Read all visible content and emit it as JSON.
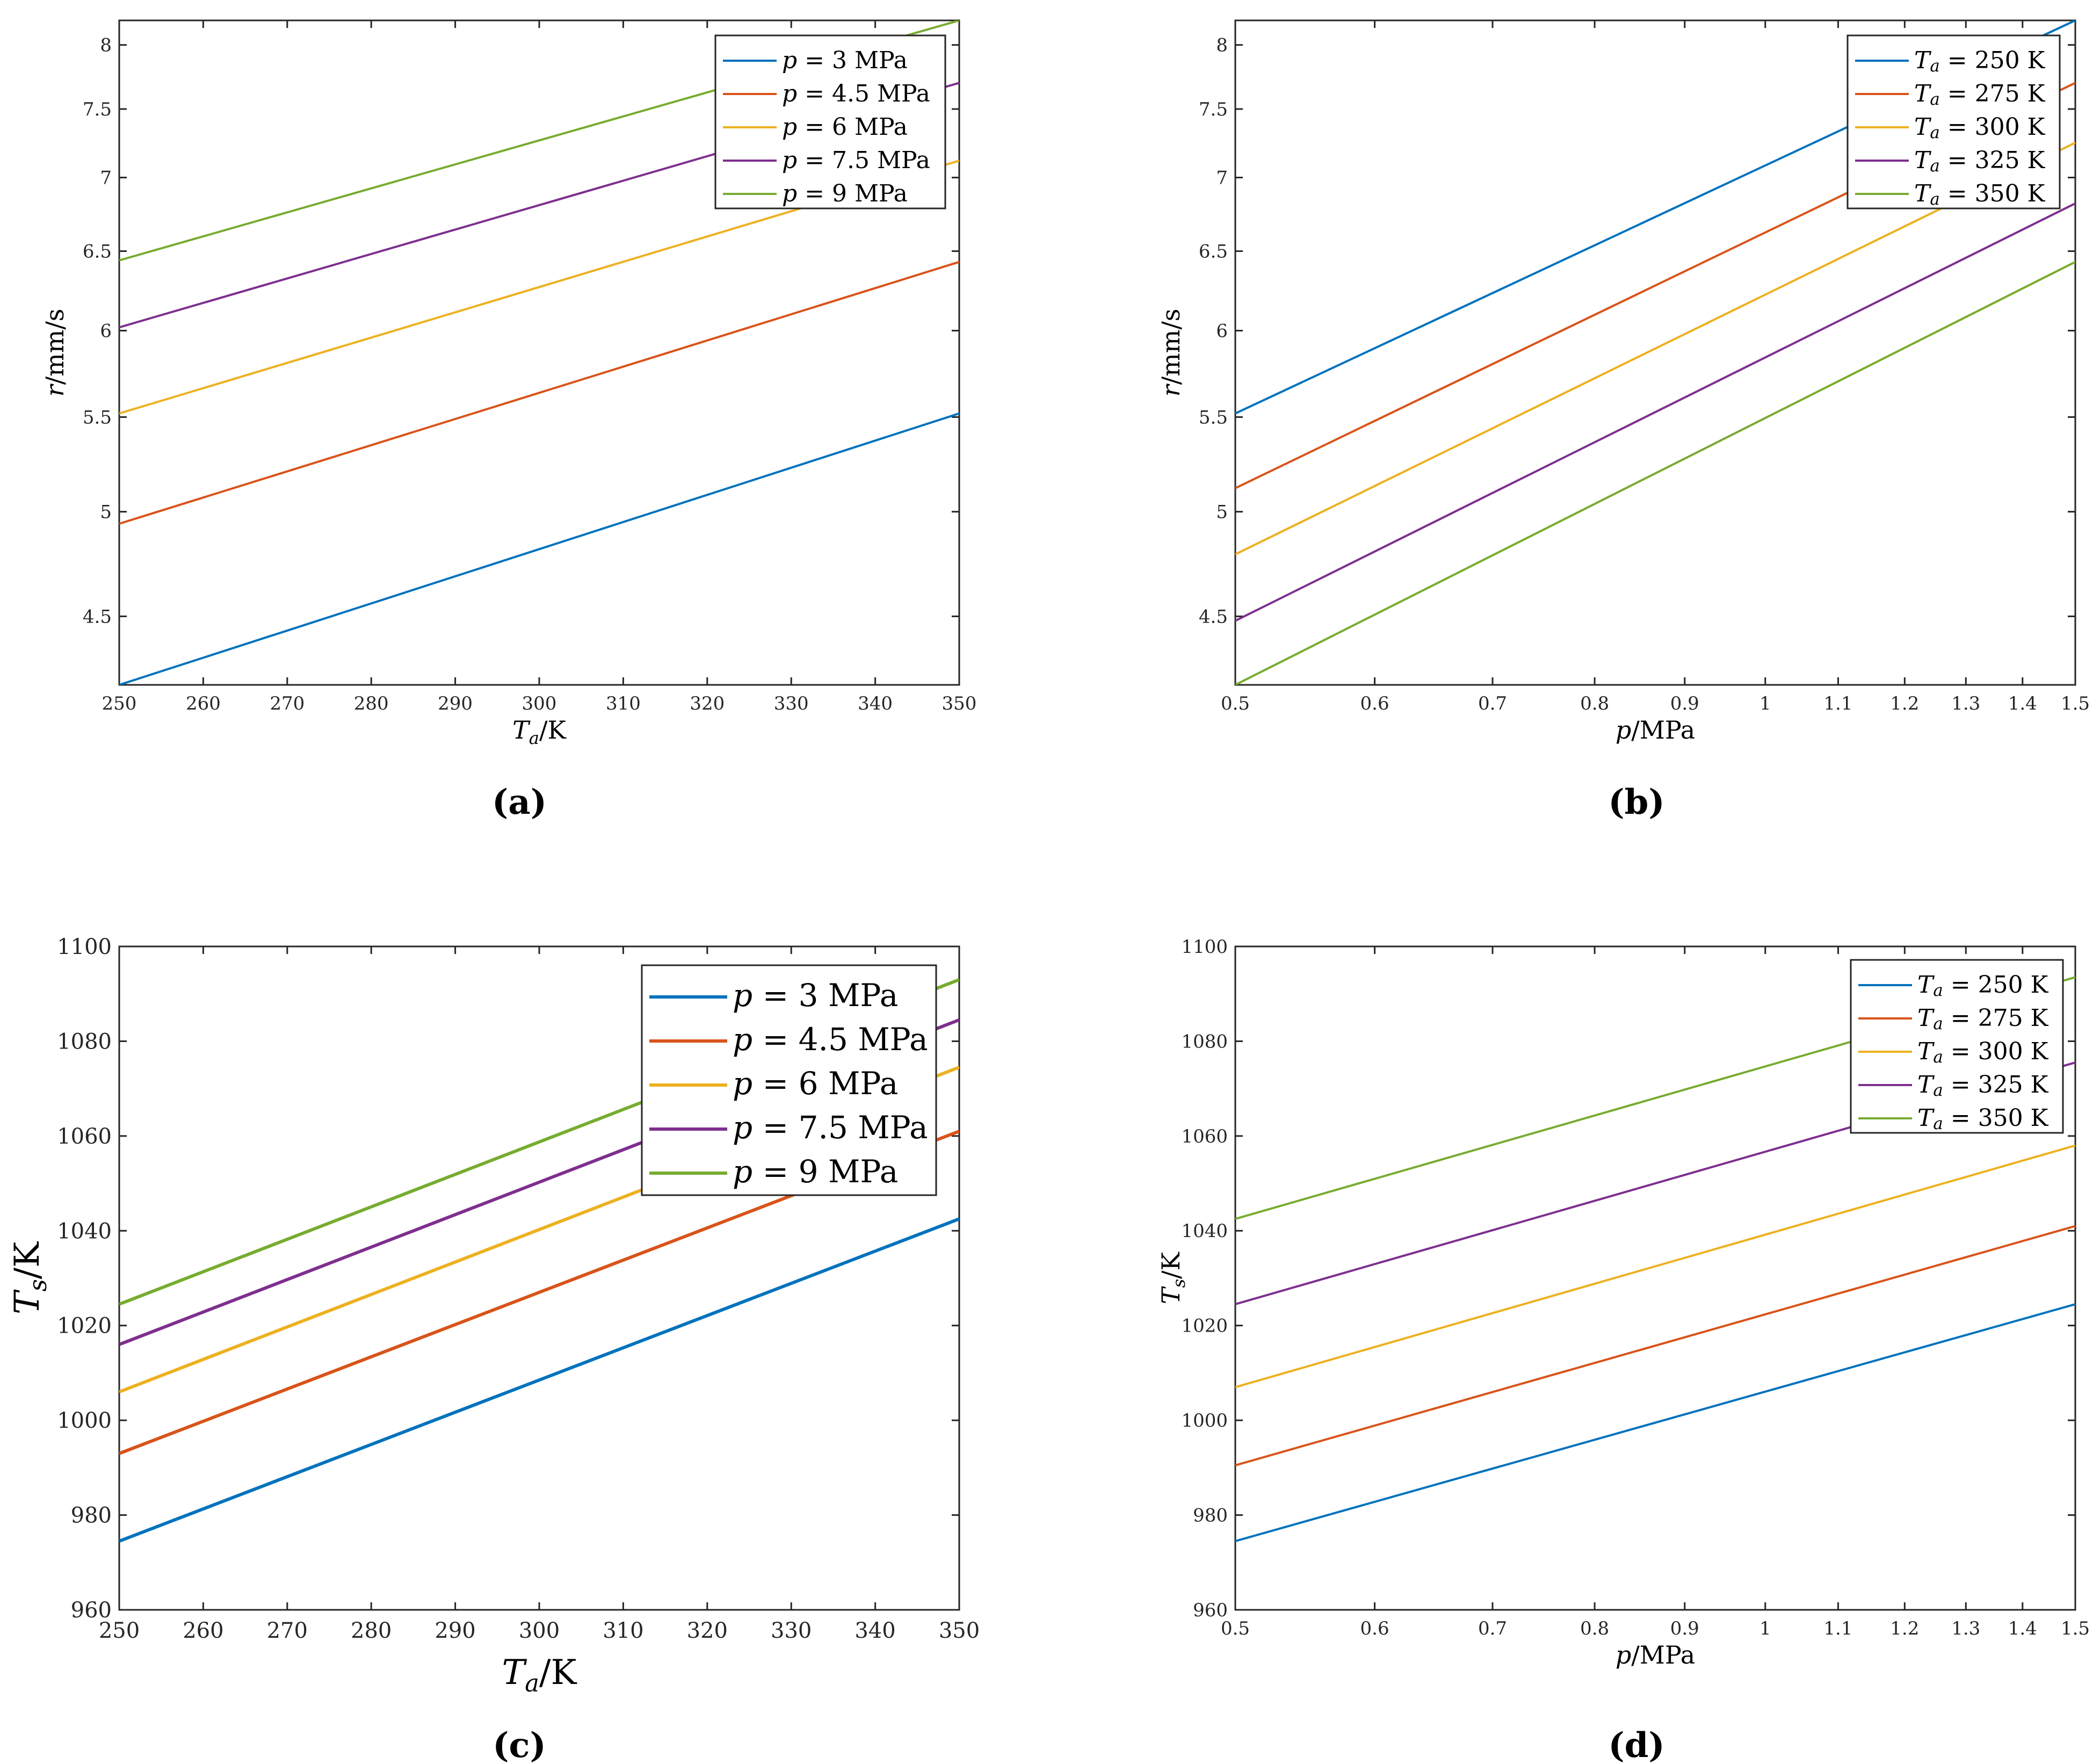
{
  "chart_data": [
    {
      "panel": "a",
      "type": "line",
      "xlabel": "T_a/K",
      "ylabel": "r/mm/s",
      "xscale": "linear",
      "yscale": "log",
      "xlim": [
        250,
        350
      ],
      "ylim": [
        4.2,
        8.2
      ],
      "xticks": [
        250,
        260,
        270,
        280,
        290,
        300,
        310,
        320,
        330,
        340,
        350
      ],
      "yticks": [
        4.5,
        5,
        5.5,
        6,
        6.5,
        7,
        7.5,
        8
      ],
      "legend_position": "top-right",
      "series": [
        {
          "name": "p = 3 MPa",
          "color": "#0072BD",
          "x": [
            250,
            350
          ],
          "y": [
            4.2,
            5.52
          ]
        },
        {
          "name": "p = 4.5 MPa",
          "color": "#D95319",
          "x": [
            250,
            350
          ],
          "y": [
            4.94,
            6.43
          ]
        },
        {
          "name": "p = 6 MPa",
          "color": "#EDB120",
          "x": [
            250,
            350
          ],
          "y": [
            5.52,
            7.12
          ]
        },
        {
          "name": "p = 7.5 MPa",
          "color": "#7E2F8E",
          "x": [
            250,
            350
          ],
          "y": [
            6.02,
            7.7
          ]
        },
        {
          "name": "p = 9 MPa",
          "color": "#77AC30",
          "x": [
            250,
            350
          ],
          "y": [
            6.44,
            8.2
          ]
        }
      ]
    },
    {
      "panel": "b",
      "type": "line",
      "xlabel": "p/MPa",
      "ylabel": "r/mm/s",
      "xscale": "log",
      "yscale": "log",
      "xlim": [
        0.5,
        1.5
      ],
      "ylim": [
        4.2,
        8.2
      ],
      "xticks": [
        0.5,
        0.6,
        0.7,
        0.8,
        0.9,
        1,
        1.1,
        1.2,
        1.3,
        1.4,
        1.5
      ],
      "yticks": [
        4.5,
        5,
        5.5,
        6,
        6.5,
        7,
        7.5,
        8
      ],
      "legend_position": "top-right",
      "series": [
        {
          "name": "T_a = 250 K",
          "color": "#0072BD",
          "x": [
            0.5,
            1.5
          ],
          "y": [
            5.52,
            8.2
          ]
        },
        {
          "name": "T_a = 275 K",
          "color": "#D95319",
          "x": [
            0.5,
            1.5
          ],
          "y": [
            5.12,
            7.7
          ]
        },
        {
          "name": "T_a = 300 K",
          "color": "#EDB120",
          "x": [
            0.5,
            1.5
          ],
          "y": [
            4.79,
            7.25
          ]
        },
        {
          "name": "T_a = 325 K",
          "color": "#7E2F8E",
          "x": [
            0.5,
            1.5
          ],
          "y": [
            4.48,
            6.82
          ]
        },
        {
          "name": "T_a = 350 K",
          "color": "#77AC30",
          "x": [
            0.5,
            1.5
          ],
          "y": [
            4.2,
            6.43
          ]
        }
      ]
    },
    {
      "panel": "c",
      "type": "line",
      "xlabel": "T_a/K",
      "ylabel": "T_s/K",
      "xscale": "linear",
      "yscale": "linear",
      "xlim": [
        250,
        350
      ],
      "ylim": [
        960,
        1100
      ],
      "xticks": [
        250,
        260,
        270,
        280,
        290,
        300,
        310,
        320,
        330,
        340,
        350
      ],
      "yticks": [
        960,
        980,
        1000,
        1020,
        1040,
        1060,
        1080,
        1100
      ],
      "legend_position": "top-right",
      "series": [
        {
          "name": "p = 3 MPa",
          "color": "#0072BD",
          "x": [
            250,
            350
          ],
          "y": [
            974.5,
            1042.5
          ]
        },
        {
          "name": "p = 4.5 MPa",
          "color": "#D95319",
          "x": [
            250,
            350
          ],
          "y": [
            993,
            1061
          ]
        },
        {
          "name": "p = 6 MPa",
          "color": "#EDB120",
          "x": [
            250,
            350
          ],
          "y": [
            1006,
            1074.5
          ]
        },
        {
          "name": "p = 7.5 MPa",
          "color": "#7E2F8E",
          "x": [
            250,
            350
          ],
          "y": [
            1016,
            1084.5
          ]
        },
        {
          "name": "p = 9 MPa",
          "color": "#77AC30",
          "x": [
            250,
            350
          ],
          "y": [
            1024.5,
            1093
          ]
        }
      ]
    },
    {
      "panel": "d",
      "type": "line",
      "xlabel": "p/MPa",
      "ylabel": "T_s/K",
      "xscale": "log",
      "yscale": "linear",
      "xlim": [
        0.5,
        1.5
      ],
      "ylim": [
        960,
        1100
      ],
      "xticks": [
        0.5,
        0.6,
        0.7,
        0.8,
        0.9,
        1,
        1.1,
        1.2,
        1.3,
        1.4,
        1.5
      ],
      "yticks": [
        960,
        980,
        1000,
        1020,
        1040,
        1060,
        1080,
        1100
      ],
      "legend_position": "top-right",
      "series": [
        {
          "name": "T_a = 250 K",
          "color": "#0072BD",
          "x": [
            0.5,
            1.5
          ],
          "y": [
            974.5,
            1024.5
          ]
        },
        {
          "name": "T_a = 275 K",
          "color": "#D95319",
          "x": [
            0.5,
            1.5
          ],
          "y": [
            990.5,
            1041
          ]
        },
        {
          "name": "T_a = 300 K",
          "color": "#EDB120",
          "x": [
            0.5,
            1.5
          ],
          "y": [
            1007,
            1058
          ]
        },
        {
          "name": "T_a = 325 K",
          "color": "#7E2F8E",
          "x": [
            0.5,
            1.5
          ],
          "y": [
            1024.5,
            1075.5
          ]
        },
        {
          "name": "T_a = 350 K",
          "color": "#77AC30",
          "x": [
            0.5,
            1.5
          ],
          "y": [
            1042.5,
            1093.5
          ]
        }
      ]
    }
  ],
  "captions": {
    "a": "(a)",
    "b": "(b)",
    "c": "(c)",
    "d": "(d)"
  }
}
